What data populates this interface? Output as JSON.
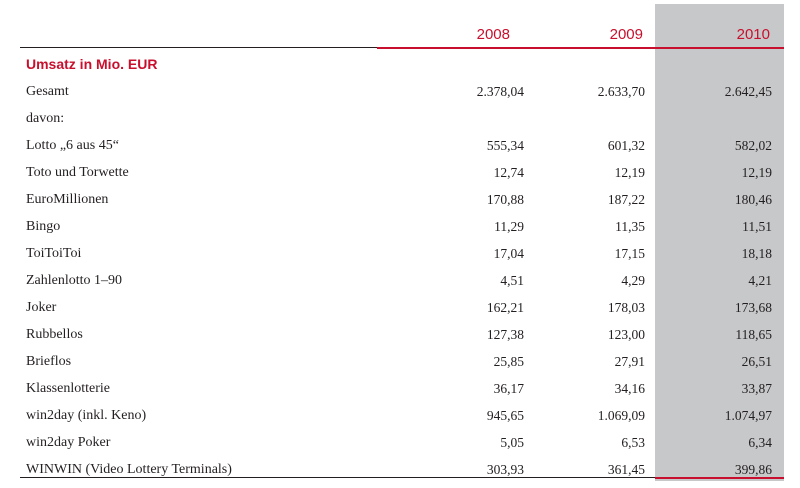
{
  "table": {
    "years": [
      "2008",
      "2009",
      "2010"
    ],
    "section_title": "Umsatz in Mio. EUR",
    "highlight_color": "#c7c8ca",
    "accent_color": "#c8102e",
    "rows": [
      {
        "label": "Gesamt",
        "v2008": "2.378,04",
        "v2009": "2.633,70",
        "v2010": "2.642,45"
      },
      {
        "label": "davon:",
        "v2008": "",
        "v2009": "",
        "v2010": ""
      },
      {
        "label": "Lotto „6 aus 45“",
        "v2008": "555,34",
        "v2009": "601,32",
        "v2010": "582,02"
      },
      {
        "label": "Toto und Torwette",
        "v2008": "12,74",
        "v2009": "12,19",
        "v2010": "12,19"
      },
      {
        "label": "EuroMillionen",
        "v2008": "170,88",
        "v2009": "187,22",
        "v2010": "180,46"
      },
      {
        "label": "Bingo",
        "v2008": "11,29",
        "v2009": "11,35",
        "v2010": "11,51"
      },
      {
        "label": "ToiToiToi",
        "v2008": "17,04",
        "v2009": "17,15",
        "v2010": "18,18"
      },
      {
        "label": "Zahlenlotto 1–90",
        "v2008": "4,51",
        "v2009": "4,29",
        "v2010": "4,21"
      },
      {
        "label": "Joker",
        "v2008": "162,21",
        "v2009": "178,03",
        "v2010": "173,68"
      },
      {
        "label": "Rubbellos",
        "v2008": "127,38",
        "v2009": "123,00",
        "v2010": "118,65"
      },
      {
        "label": "Brieflos",
        "v2008": "25,85",
        "v2009": "27,91",
        "v2010": "26,51"
      },
      {
        "label": "Klassenlotterie",
        "v2008": "36,17",
        "v2009": "34,16",
        "v2010": "33,87"
      },
      {
        "label": "win2day (inkl. Keno)",
        "v2008": "945,65",
        "v2009": "1.069,09",
        "v2010": "1.074,97"
      },
      {
        "label": "win2day Poker",
        "v2008": "5,05",
        "v2009": "6,53",
        "v2010": "6,34"
      },
      {
        "label": "WINWIN (Video Lottery Terminals)",
        "v2008": "303,93",
        "v2009": "361,45",
        "v2010": "399,86"
      }
    ]
  }
}
